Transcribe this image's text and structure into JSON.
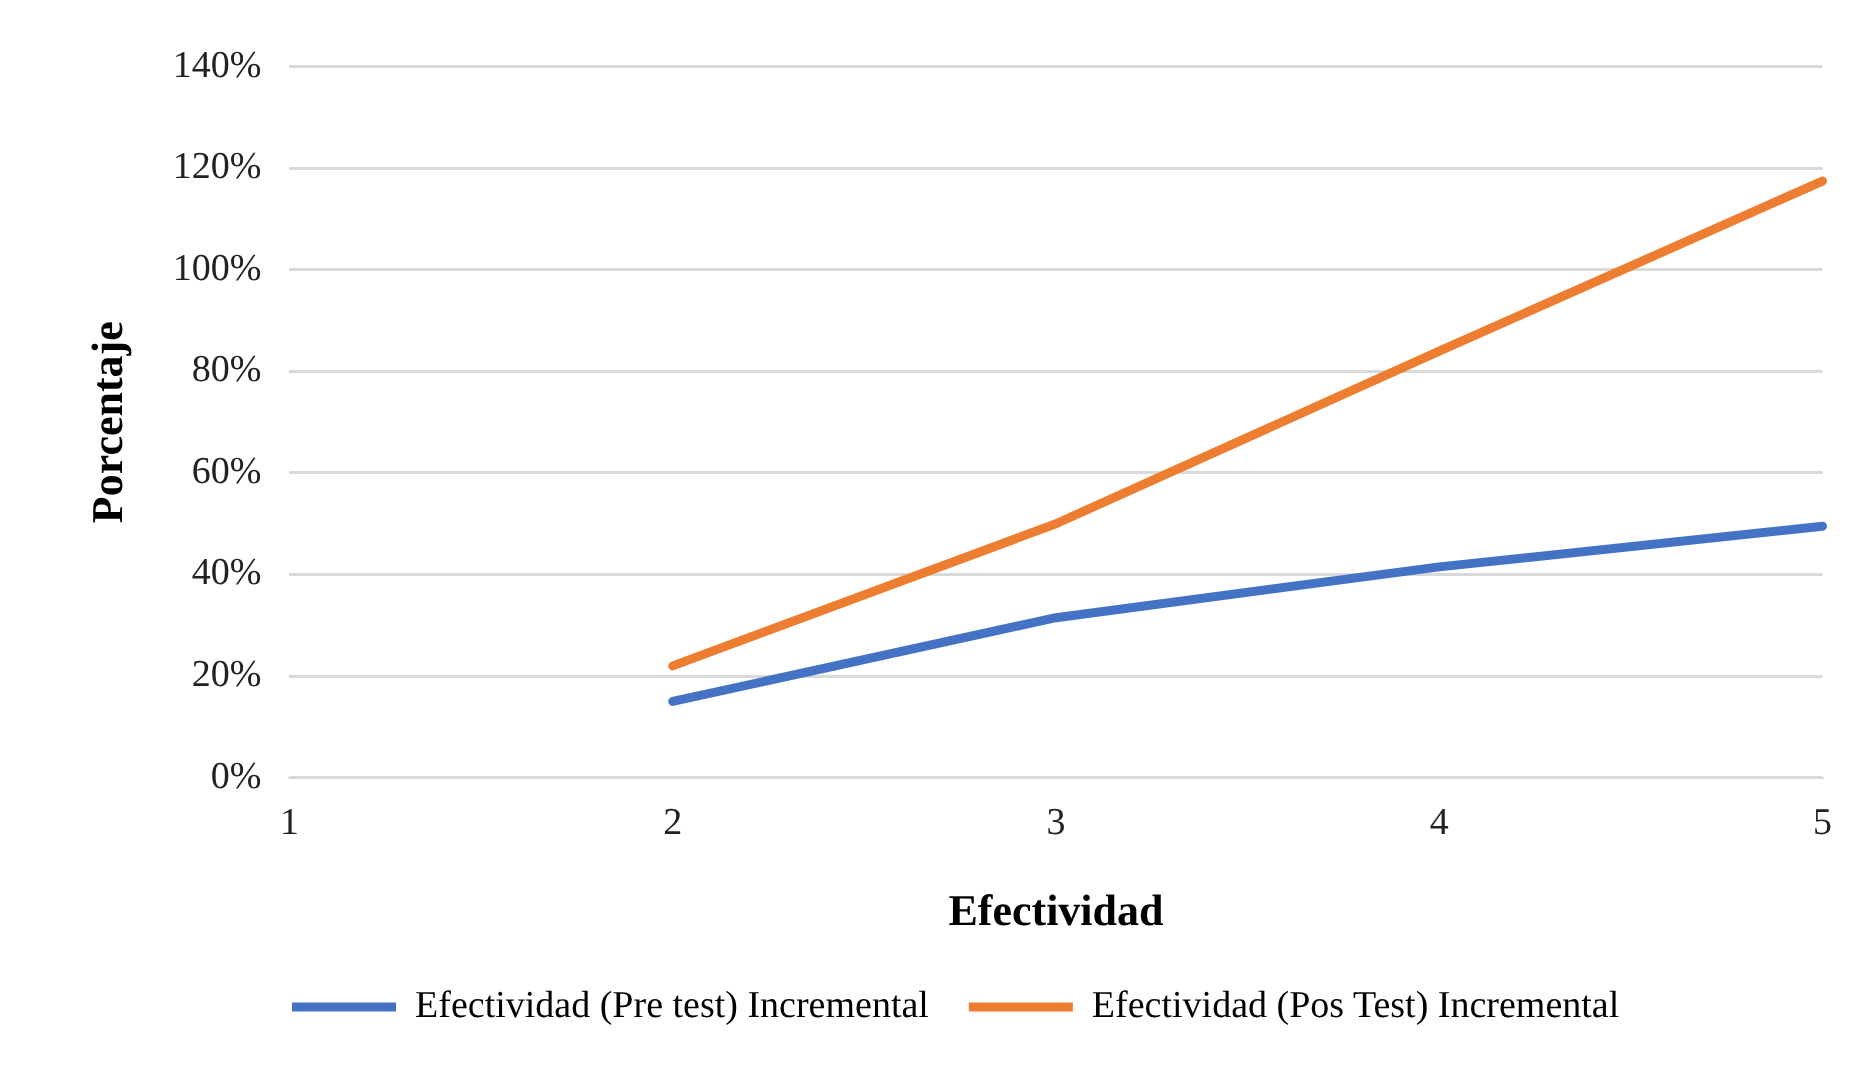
{
  "chart_data": {
    "type": "line",
    "xlabel": "Efectividad",
    "ylabel": "Porcentaje",
    "categories": [
      "1",
      "2",
      "3",
      "4",
      "5"
    ],
    "series": [
      {
        "name": "Efectividad (Pre test) Incremental",
        "color": "#4472c4",
        "values": [
          null,
          15,
          31.5,
          41.5,
          49.5
        ]
      },
      {
        "name": "Efectividad (Pos Test) Incremental",
        "color": "#ed7d31",
        "values": [
          null,
          22,
          50,
          84,
          117.5
        ]
      }
    ],
    "ylim": [
      0,
      140
    ],
    "yticks": [
      {
        "value": 0,
        "label": "0%"
      },
      {
        "value": 20,
        "label": "20%"
      },
      {
        "value": 40,
        "label": "40%"
      },
      {
        "value": 60,
        "label": "60%"
      },
      {
        "value": 80,
        "label": "80%"
      },
      {
        "value": 100,
        "label": "100%"
      },
      {
        "value": 120,
        "label": "120%"
      },
      {
        "value": 140,
        "label": "140%"
      }
    ],
    "grid": "y",
    "legend": "bottom",
    "marker": "none",
    "line_style": "solid"
  }
}
